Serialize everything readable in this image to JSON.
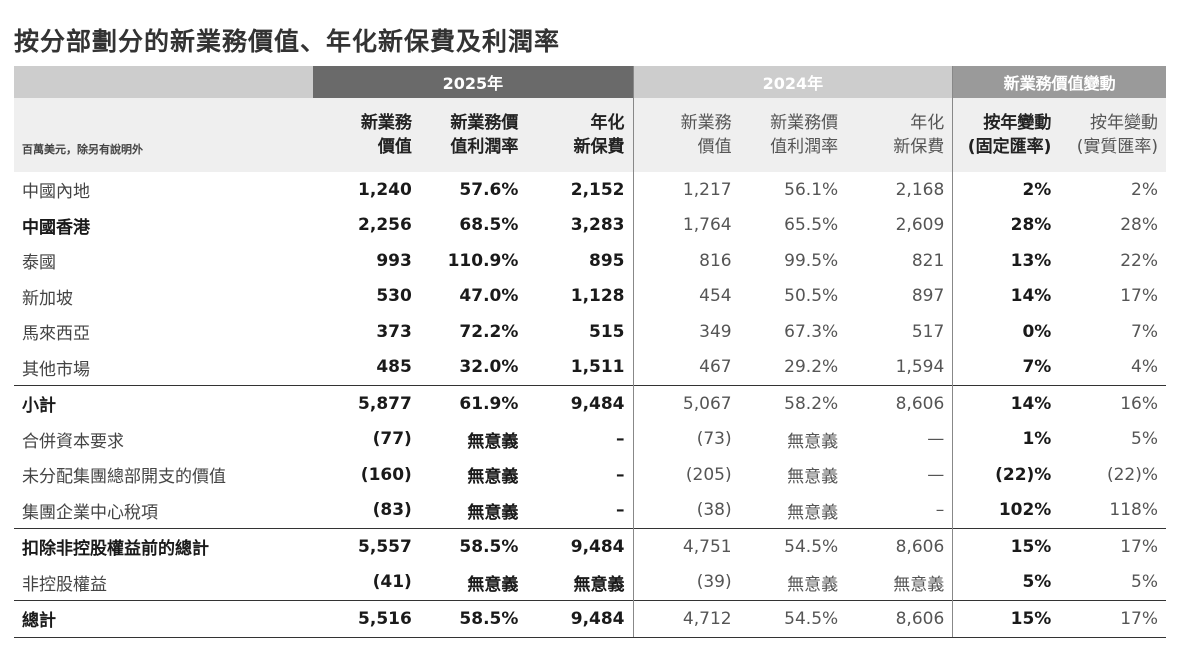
{
  "title": "按分部劃分的新業務價值、年化新保費及利潤率",
  "groups": {
    "y2025": "2025年",
    "y2024": "2024年",
    "change": "新業務價值變動"
  },
  "unit": "百萬美元，除另有說明外",
  "sub": [
    [
      "新業務",
      "價值"
    ],
    [
      "新業務價",
      "值利潤率"
    ],
    [
      "年化",
      "新保費"
    ],
    [
      "新業務",
      "價值"
    ],
    [
      "新業務價",
      "值利潤率"
    ],
    [
      "年化",
      "新保費"
    ],
    [
      "按年變動",
      "(固定匯率)"
    ],
    [
      "按年變動",
      "(實質匯率)"
    ]
  ],
  "rows": [
    {
      "label": "中國內地",
      "v": [
        "1,240",
        "57.6%",
        "2,152",
        "1,217",
        "56.1%",
        "2,168",
        "2%",
        "2%"
      ]
    },
    {
      "label": "中國香港",
      "v": [
        "2,256",
        "68.5%",
        "3,283",
        "1,764",
        "65.5%",
        "2,609",
        "28%",
        "28%"
      ]
    },
    {
      "label": "泰國",
      "v": [
        "993",
        "110.9%",
        "895",
        "816",
        "99.5%",
        "821",
        "13%",
        "22%"
      ]
    },
    {
      "label": "新加坡",
      "v": [
        "530",
        "47.0%",
        "1,128",
        "454",
        "50.5%",
        "897",
        "14%",
        "17%"
      ]
    },
    {
      "label": "馬來西亞",
      "v": [
        "373",
        "72.2%",
        "515",
        "349",
        "67.3%",
        "517",
        "0%",
        "7%"
      ]
    },
    {
      "label": "其他市場",
      "v": [
        "485",
        "32.0%",
        "1,511",
        "467",
        "29.2%",
        "1,594",
        "7%",
        "4%"
      ]
    },
    {
      "label": "小計",
      "v": [
        "5,877",
        "61.9%",
        "9,484",
        "5,067",
        "58.2%",
        "8,606",
        "14%",
        "16%"
      ]
    },
    {
      "label": "合併資本要求",
      "v": [
        "(77)",
        "無意義",
        "–",
        "(73)",
        "無意義",
        "—",
        "1%",
        "5%"
      ]
    },
    {
      "label": "未分配集團總部開支的價值",
      "v": [
        "(160)",
        "無意義",
        "–",
        "(205)",
        "無意義",
        "—",
        "(22)%",
        "(22)%"
      ]
    },
    {
      "label": "集團企業中心稅項",
      "v": [
        "(83)",
        "無意義",
        "–",
        "(38)",
        "無意義",
        "–",
        "102%",
        "118%"
      ]
    },
    {
      "label": "扣除非控股權益前的總計",
      "v": [
        "5,557",
        "58.5%",
        "9,484",
        "4,751",
        "54.5%",
        "8,606",
        "15%",
        "17%"
      ]
    },
    {
      "label": "非控股權益",
      "v": [
        "(41)",
        "無意義",
        "無意義",
        "(39)",
        "無意義",
        "無意義",
        "5%",
        "5%"
      ]
    },
    {
      "label": "總計",
      "v": [
        "5,516",
        "58.5%",
        "9,484",
        "4,712",
        "54.5%",
        "8,606",
        "15%",
        "17%"
      ]
    }
  ]
}
